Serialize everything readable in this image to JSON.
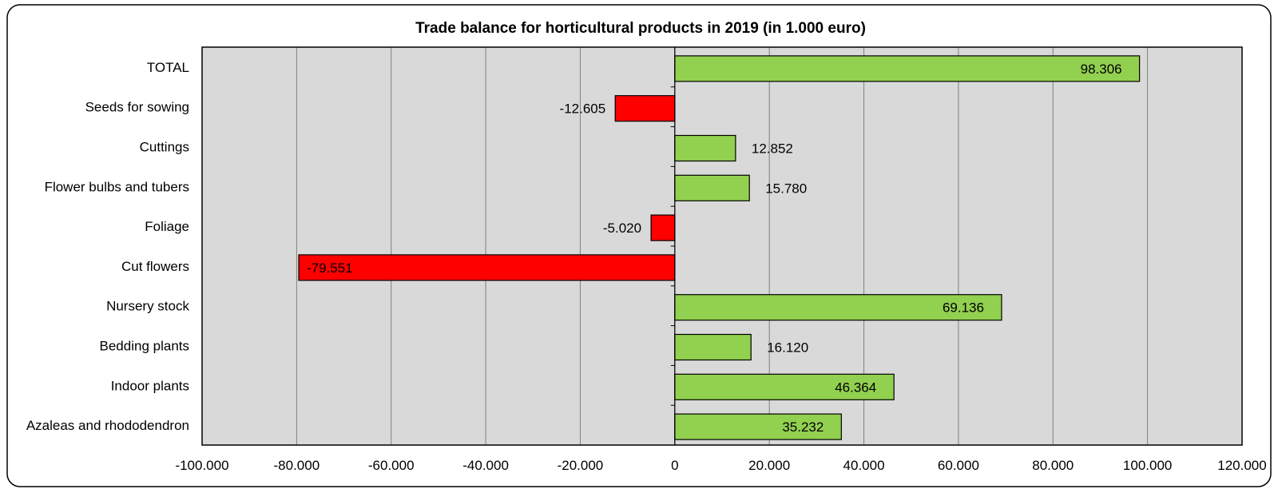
{
  "chart_data": {
    "type": "bar",
    "orientation": "horizontal",
    "title": "Trade balance for horticultural products in 2019 (in 1.000 euro)",
    "categories": [
      "TOTAL",
      "Seeds for sowing",
      "Cuttings",
      "Flower bulbs and tubers",
      "Foliage",
      "Cut flowers",
      "Nursery stock",
      "Bedding plants",
      "Indoor plants",
      "Azaleas and rhododendron"
    ],
    "values": [
      98306,
      -12605,
      12852,
      15780,
      -5020,
      -79551,
      69136,
      16120,
      46364,
      35232
    ],
    "value_labels": [
      "98.306",
      "-12.605",
      "12.852",
      "15.780",
      "-5.020",
      "-79.551",
      "69.136",
      "16.120",
      "46.364",
      "35.232"
    ],
    "xlim": [
      -100000,
      120000
    ],
    "xticks": [
      -100000,
      -80000,
      -60000,
      -40000,
      -20000,
      0,
      20000,
      40000,
      60000,
      80000,
      100000,
      120000
    ],
    "xtick_labels": [
      "-100.000",
      "-80.000",
      "-60.000",
      "-40.000",
      "-20.000",
      "0",
      "20.000",
      "40.000",
      "60.000",
      "80.000",
      "100.000",
      "120.000"
    ],
    "grid": true,
    "legend": "none",
    "colors": {
      "positive": "#92d050",
      "negative": "#ff0000",
      "plot_bg": "#d9d9d9",
      "grid": "#808080"
    }
  }
}
